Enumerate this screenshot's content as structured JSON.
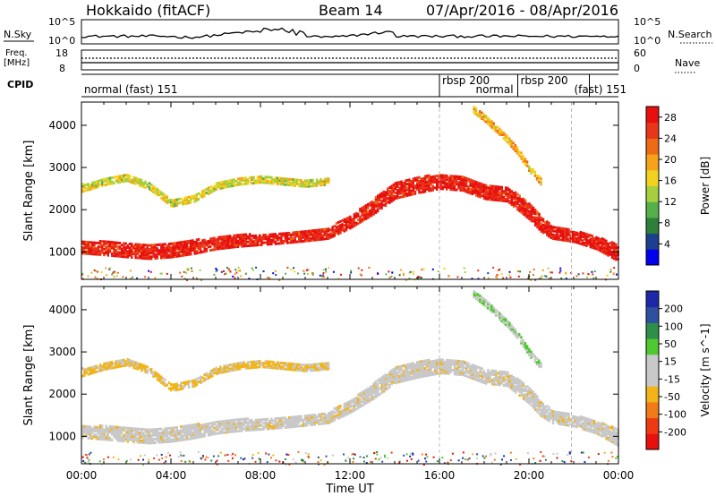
{
  "header": {
    "station": "Hokkaido (fitACF)",
    "beam": "Beam 14",
    "date_range": "07/Apr/2016 - 08/Apr/2016"
  },
  "small_panels": {
    "nsky_label": "N.Sky",
    "nsky_ticks": [
      "10^5",
      "10^0"
    ],
    "nsearch_label": "N.Search",
    "nsearch_ticks": [
      "10^5",
      "10^0"
    ],
    "freq_label": "Freq.",
    "freq_unit": "[MHz]",
    "freq_ticks": [
      "18",
      "8"
    ],
    "nave_label": "Nave",
    "nave_ticks": [
      "60",
      "0"
    ],
    "cpid_label": "CPID"
  },
  "cpid_blocks": [
    {
      "name": "normal (fast) 151",
      "start": 0,
      "end": 16
    },
    {
      "name": "rbsp 200",
      "start": 16,
      "end": 17.5
    },
    {
      "name": "normal",
      "start": 17.5,
      "end": 19.5
    },
    {
      "name": "rbsp 200",
      "start": 19.5,
      "end": 21.9
    },
    {
      "name": "(fast) 151",
      "start": 21.9,
      "end": 24
    }
  ],
  "colors": {
    "power": [
      "#0000ee",
      "#1d3f8f",
      "#2e7f3a",
      "#55b04a",
      "#a6cf3d",
      "#f2d21e",
      "#f6a21a",
      "#ee6a14",
      "#e8361a",
      "#e80f0f"
    ],
    "velocity": [
      "#e8100c",
      "#ee3a12",
      "#f27a17",
      "#f3b418",
      "#c8c8c8",
      "#c8c8c8",
      "#4fc92f",
      "#2e8f4a",
      "#2f4f9f",
      "#1d28a8"
    ]
  },
  "chart_data": [
    {
      "type": "heatmap",
      "title": "",
      "ylabel": "Slant Range [km]",
      "xlabel": "",
      "x_range": [
        0,
        24
      ],
      "y_range": [
        350,
        4550
      ],
      "y_ticks": [
        "1000",
        "2000",
        "3000",
        "4000"
      ],
      "colorbar": {
        "label": "Power [dB]",
        "ticks": [
          "4",
          "8",
          "12",
          "16",
          "20",
          "24",
          "28"
        ],
        "range": [
          0,
          30
        ]
      },
      "bands": [
        {
          "name": "main",
          "x": [
            0,
            1,
            2,
            3,
            4,
            5,
            6,
            7,
            8,
            9,
            10,
            11,
            12,
            13,
            14,
            15,
            16,
            17,
            18,
            19,
            20,
            20.5,
            21,
            21.5,
            22,
            23,
            24
          ],
          "center": [
            1150,
            1120,
            1080,
            1050,
            1080,
            1150,
            1250,
            1300,
            1330,
            1370,
            1420,
            1480,
            1750,
            2100,
            2500,
            2620,
            2700,
            2650,
            2450,
            2400,
            2000,
            1700,
            1500,
            1450,
            1400,
            1250,
            1000
          ],
          "half_width": [
            150,
            160,
            170,
            180,
            170,
            160,
            150,
            140,
            130,
            130,
            130,
            130,
            150,
            180,
            200,
            190,
            170,
            160,
            160,
            170,
            200,
            180,
            150,
            140,
            130,
            150,
            200
          ],
          "power": 27
        },
        {
          "name": "upper",
          "x": [
            0,
            1,
            2,
            3,
            4,
            5,
            6,
            7,
            8,
            9,
            10,
            11
          ],
          "center": [
            2550,
            2700,
            2800,
            2600,
            2200,
            2300,
            2600,
            2700,
            2750,
            2700,
            2650,
            2700
          ],
          "half_width": [
            90,
            80,
            80,
            80,
            90,
            80,
            80,
            70,
            70,
            70,
            70,
            70
          ],
          "power": 15
        },
        {
          "name": "oblique",
          "x": [
            17.5,
            18,
            18.5,
            19,
            19.5,
            20,
            20.5
          ],
          "center": [
            4400,
            4200,
            3950,
            3700,
            3400,
            3000,
            2700
          ],
          "half_width": [
            70,
            70,
            70,
            70,
            70,
            70,
            70
          ],
          "power": 18
        }
      ]
    },
    {
      "type": "heatmap",
      "title": "",
      "ylabel": "Slant Range [km]",
      "xlabel": "Time UT",
      "x_range": [
        0,
        24
      ],
      "y_range": [
        350,
        4550
      ],
      "y_ticks": [
        "1000",
        "2000",
        "3000",
        "4000"
      ],
      "x_ticks": [
        "00:00",
        "04:00",
        "08:00",
        "12:00",
        "16:00",
        "20:00",
        "00:00"
      ],
      "colorbar": {
        "label": "Velocity [m s^-1]",
        "ticks": [
          "-200",
          "-100",
          "-50",
          "-15",
          "15",
          "50",
          "100",
          "200"
        ],
        "range": [
          -250,
          250
        ]
      },
      "bands": [
        {
          "name": "main",
          "x": [
            0,
            1,
            2,
            3,
            4,
            5,
            6,
            7,
            8,
            9,
            10,
            11,
            12,
            13,
            14,
            15,
            16,
            17,
            18,
            19,
            20,
            20.5,
            21,
            21.5,
            22,
            23,
            24
          ],
          "center": [
            1150,
            1120,
            1080,
            1050,
            1080,
            1150,
            1250,
            1300,
            1330,
            1370,
            1420,
            1480,
            1750,
            2100,
            2500,
            2620,
            2700,
            2650,
            2450,
            2400,
            2000,
            1700,
            1500,
            1450,
            1400,
            1250,
            1000
          ],
          "half_width": [
            150,
            160,
            170,
            180,
            170,
            160,
            150,
            140,
            130,
            130,
            130,
            130,
            150,
            180,
            200,
            190,
            170,
            160,
            160,
            170,
            200,
            180,
            150,
            140,
            130,
            150,
            200
          ],
          "velocity": 0
        },
        {
          "name": "upper",
          "x": [
            0,
            1,
            2,
            3,
            4,
            5,
            6,
            7,
            8,
            9,
            10,
            11
          ],
          "center": [
            2550,
            2700,
            2800,
            2600,
            2200,
            2300,
            2600,
            2700,
            2750,
            2700,
            2650,
            2700
          ],
          "half_width": [
            90,
            80,
            80,
            80,
            90,
            80,
            80,
            70,
            70,
            70,
            70,
            70
          ],
          "velocity": -60
        },
        {
          "name": "oblique",
          "x": [
            17.5,
            18,
            18.5,
            19,
            19.5,
            20,
            20.5
          ],
          "center": [
            4400,
            4200,
            3950,
            3700,
            3400,
            3000,
            2700
          ],
          "half_width": [
            70,
            70,
            70,
            70,
            70,
            70,
            70
          ],
          "velocity": 40
        }
      ]
    }
  ]
}
